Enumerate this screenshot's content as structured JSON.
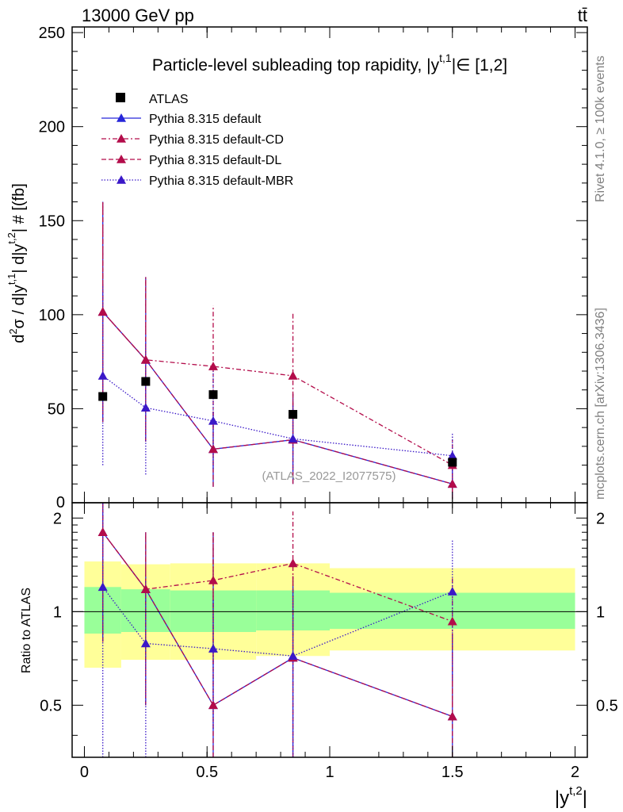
{
  "header": {
    "left": "13000 GeV pp",
    "right": "tt̄",
    "side_rivet": "Rivet 4.1.0, ≥ 100k events",
    "side_mcplots": "mcplots.cern.ch [arXiv:1306.3436]"
  },
  "chart_data": {
    "type": "scatter",
    "title": "Particle-level subleading top rapidity, |y^{t,1}| ∈ [1,2]",
    "title_main": "Particle-level subleading top rapidity, |y",
    "title_sup": "t,1",
    "title_tail": "|∈ [1,2]",
    "watermark": "(ATLAS_2022_I2077575)",
    "xlabel": "|y^{t,2}|",
    "xlabel_main": "|y",
    "xlabel_sup": "t,2",
    "xlabel_tail": "|",
    "ylabel": "d²σ / d|y^{t,1}| d|y^{t,2}| # [fb]",
    "ylabel_main": "d",
    "ylabel_sup2": "2",
    "ylabel_mid": "σ / d|y",
    "ylabel_sup_t1": "t,1",
    "ylabel_mid2": "| d|y",
    "ylabel_sup_t2": "t,2",
    "ylabel_tail": "| # [(fb]",
    "ratio_ylabel": "Ratio to ATLAS",
    "xlim": [
      -0.05,
      2.05
    ],
    "ylim": [
      0,
      253
    ],
    "ratio_ylim": [
      0.34,
      2.24
    ],
    "x_ticks": [
      "0",
      "0.5",
      "1",
      "1.5",
      "2"
    ],
    "y_ticks": [
      "0",
      "50",
      "100",
      "150",
      "200",
      "250"
    ],
    "ratio_ticks": [
      "0.5",
      "1",
      "2"
    ],
    "bins": [
      [
        0,
        0.15
      ],
      [
        0.15,
        0.35
      ],
      [
        0.35,
        0.7
      ],
      [
        0.7,
        1.0
      ],
      [
        1.0,
        2.0
      ]
    ],
    "x": [
      0.075,
      0.25,
      0.525,
      0.85,
      1.5
    ],
    "atlas": {
      "name": "ATLAS",
      "values": [
        56.5,
        64.5,
        57.5,
        47,
        21.5
      ],
      "stat_band": [
        [
          0.85,
          1.2
        ],
        [
          0.86,
          1.18
        ],
        [
          0.86,
          1.17
        ],
        [
          0.87,
          1.17
        ],
        [
          0.88,
          1.15
        ]
      ],
      "total_band": [
        [
          0.66,
          1.45
        ],
        [
          0.7,
          1.42
        ],
        [
          0.7,
          1.43
        ],
        [
          0.72,
          1.43
        ],
        [
          0.75,
          1.38
        ]
      ]
    },
    "series": [
      {
        "name": "Pythia 8.315 default",
        "color": "#2626d9",
        "dash": "",
        "marker": "triangle",
        "values": [
          101.5,
          76,
          28.5,
          33.5,
          10
        ],
        "err_low": [
          43,
          32.5,
          8.5,
          10,
          2
        ],
        "err_high": [
          160,
          120,
          48.5,
          58,
          18
        ],
        "ratio": [
          1.8,
          1.18,
          0.5,
          0.71,
          0.46
        ],
        "ratio_err": [
          [
            0.8,
            2.24
          ],
          [
            0.5,
            1.8
          ],
          [
            0.34,
            1.8
          ],
          [
            0.34,
            1.3
          ],
          [
            0.34,
            0.85
          ]
        ]
      },
      {
        "name": "Pythia 8.315 default-CD",
        "color": "#b30c4a",
        "dash": "6 3 2 3",
        "marker": "triangle",
        "values": [
          101.5,
          76,
          72.5,
          67.5,
          20
        ],
        "err_low": [
          43,
          32.5,
          40,
          33,
          5
        ],
        "err_high": [
          160,
          120,
          105,
          101.5,
          35
        ],
        "ratio": [
          1.8,
          1.18,
          1.26,
          1.43,
          0.93
        ],
        "ratio_err": [
          [
            0.8,
            2.24
          ],
          [
            0.5,
            1.8
          ],
          [
            0.68,
            1.8
          ],
          [
            0.76,
            2.1
          ],
          [
            0.5,
            1.3
          ]
        ]
      },
      {
        "name": "Pythia 8.315 default-DL",
        "color": "#b30c4a",
        "dash": "6 3",
        "marker": "triangle",
        "values": [
          101.5,
          76,
          28.5,
          33.5,
          10
        ],
        "err_low": [
          43,
          32.5,
          8.5,
          10,
          2
        ],
        "err_high": [
          160,
          120,
          48.5,
          58,
          18
        ],
        "ratio": [
          1.8,
          1.18,
          0.5,
          0.71,
          0.46
        ],
        "ratio_err": [
          [
            0.8,
            2.24
          ],
          [
            0.5,
            1.8
          ],
          [
            0.34,
            1.8
          ],
          [
            0.34,
            1.3
          ],
          [
            0.34,
            0.85
          ]
        ]
      },
      {
        "name": "Pythia 8.315 default-MBR",
        "color": "#3a18c8",
        "dash": "1.5 2",
        "marker": "triangle",
        "values": [
          67.5,
          50.5,
          43.5,
          34,
          25
        ],
        "err_low": [
          20,
          15,
          18,
          17,
          8
        ],
        "err_high": [
          116,
          86,
          70,
          52,
          37
        ],
        "ratio": [
          1.2,
          0.79,
          0.76,
          0.72,
          1.16
        ],
        "ratio_err": [
          [
            0.34,
            2.24
          ],
          [
            0.34,
            1.26
          ],
          [
            0.42,
            1.1
          ],
          [
            0.34,
            1.2
          ],
          [
            0.6,
            1.7
          ]
        ]
      }
    ]
  }
}
